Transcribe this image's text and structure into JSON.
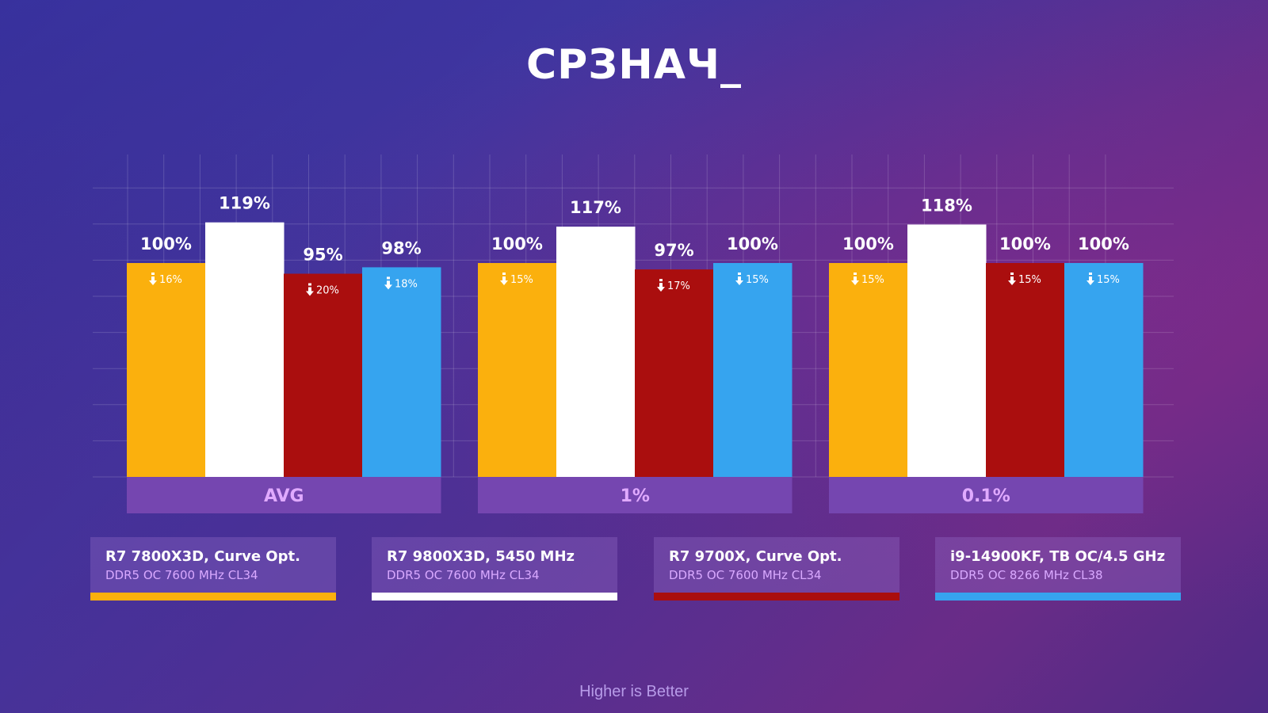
{
  "title": "СРЗНАЧ_",
  "footer": "Higher is Better",
  "chart_data": {
    "type": "bar",
    "title": "СРЗНАЧ_",
    "categories": [
      "AVG",
      "1%",
      "0.1%"
    ],
    "value_unit": "%",
    "grid": true,
    "series": [
      {
        "name": "R7 7800X3D, Curve Opt.",
        "subtitle": "DDR5 OC 7600 MHz CL34",
        "color": "#fbb00d",
        "values": [
          100,
          100,
          100
        ],
        "labels": [
          "100%",
          "100%",
          "100%"
        ],
        "deltas": [
          "16%",
          "15%",
          "15%"
        ]
      },
      {
        "name": "R7 9800X3D, 5450 MHz",
        "subtitle": "DDR5 OC 7600 MHz CL34",
        "color": "#ffffff",
        "values": [
          119,
          117,
          118
        ],
        "labels": [
          "119%",
          "117%",
          "118%"
        ],
        "deltas": [
          "",
          "",
          ""
        ]
      },
      {
        "name": "R7 9700X, Curve Opt.",
        "subtitle": "DDR5 OC 7600 MHz CL34",
        "color": "#aa0e0e",
        "values": [
          95,
          97,
          100
        ],
        "labels": [
          "95%",
          "97%",
          "100%"
        ],
        "deltas": [
          "20%",
          "17%",
          "15%"
        ]
      },
      {
        "name": "i9-14900KF, TB OC/4.5 GHz",
        "subtitle": "DDR5 OC 8266 MHz CL38",
        "color": "#36a4ef",
        "values": [
          98,
          100,
          100
        ],
        "labels": [
          "98%",
          "100%",
          "100%"
        ],
        "deltas": [
          "18%",
          "15%",
          "15%"
        ]
      }
    ]
  }
}
